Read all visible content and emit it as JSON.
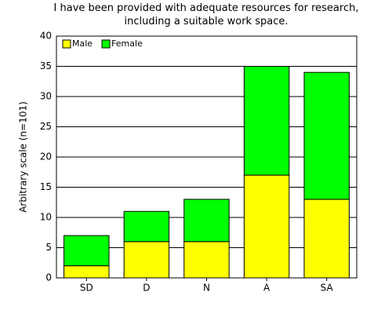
{
  "chart_data": {
    "type": "bar",
    "stacked": true,
    "title": "I have been provided with adequate resources for research, including a suitable work space.",
    "y_label": "Arbitrary scale (n=101)",
    "categories": [
      "SD",
      "D",
      "N",
      "A",
      "SA"
    ],
    "series": [
      {
        "name": "Male",
        "color": "#ffff00",
        "values": [
          2,
          6,
          6,
          17,
          13
        ]
      },
      {
        "name": "Female",
        "color": "#00ff00",
        "values": [
          5,
          5,
          7,
          18,
          21
        ]
      }
    ],
    "ylim": [
      0,
      40
    ],
    "yticks": [
      0,
      5,
      10,
      15,
      20,
      25,
      30,
      35,
      40
    ],
    "grid": true,
    "legend": "top-left"
  }
}
